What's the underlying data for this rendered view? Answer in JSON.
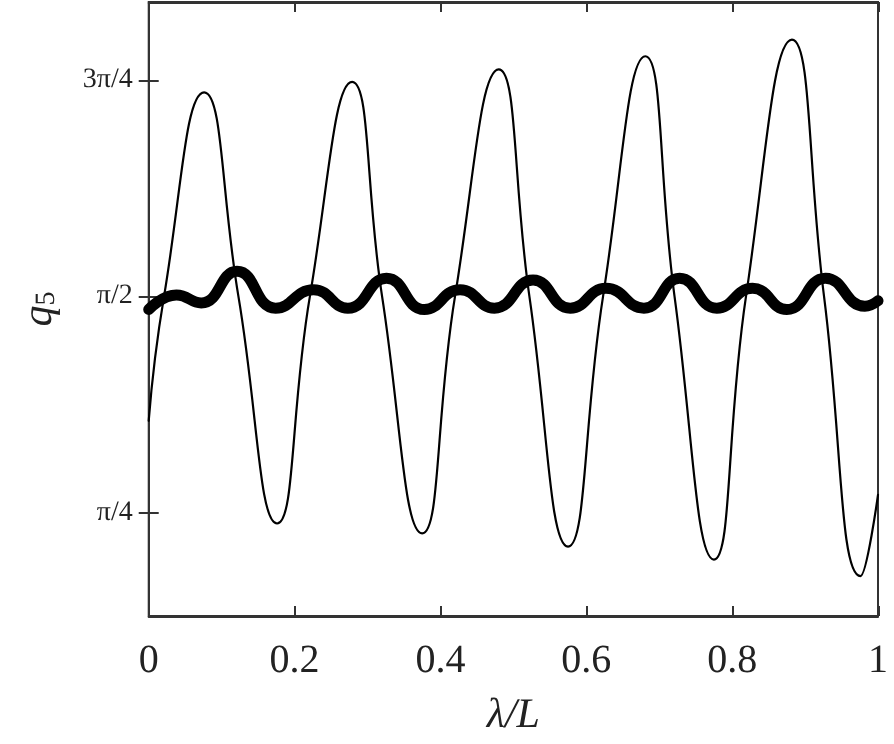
{
  "chart_data": {
    "type": "line",
    "xlabel": "λ/L",
    "ylabel": "q$_{5}$",
    "xlim": [
      0,
      1
    ],
    "xticks": [
      0,
      0.2,
      0.4,
      0.6,
      0.8,
      1
    ],
    "ylim": [
      0.41,
      2.64
    ],
    "yticks": [
      {
        "value": 0.785,
        "label": "π/4"
      },
      {
        "value": 1.571,
        "label": "π/2"
      },
      {
        "value": 2.356,
        "label": "3π/4"
      }
    ],
    "grid": false,
    "marker": "none",
    "line_style": "solid",
    "series": [
      {
        "color": "#000000",
        "x": [
          0,
          0.021,
          0.076,
          0.123,
          0.176,
          0.221,
          0.279,
          0.32,
          0.375,
          0.42,
          0.48,
          0.522,
          0.575,
          0.623,
          0.681,
          0.721,
          0.775,
          0.819,
          0.882,
          0.926,
          0.976,
          1
        ],
        "values": [
          1.119,
          1.571,
          2.312,
          1.571,
          0.746,
          1.571,
          2.35,
          1.571,
          0.71,
          1.571,
          2.395,
          1.571,
          0.662,
          1.571,
          2.443,
          1.571,
          0.615,
          1.571,
          2.503,
          1.571,
          0.555,
          0.85
        ]
      },
      {
        "color": "#000000",
        "x": [
          0,
          0.038,
          0.072,
          0.121,
          0.174,
          0.226,
          0.273,
          0.326,
          0.378,
          0.427,
          0.474,
          0.527,
          0.578,
          0.627,
          0.679,
          0.728,
          0.779,
          0.828,
          0.875,
          0.928,
          0.982,
          1
        ],
        "values": [
          1.523,
          1.576,
          1.547,
          1.662,
          1.528,
          1.595,
          1.528,
          1.637,
          1.523,
          1.595,
          1.528,
          1.63,
          1.528,
          1.6,
          1.528,
          1.637,
          1.528,
          1.6,
          1.523,
          1.637,
          1.535,
          1.555
        ]
      }
    ]
  }
}
